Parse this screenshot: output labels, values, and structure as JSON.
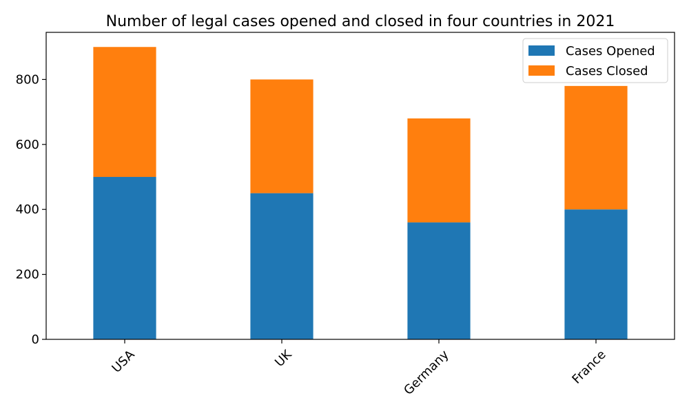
{
  "chart_data": {
    "type": "bar",
    "stacked": true,
    "title": "Number of legal cases opened and closed in four countries in 2021",
    "xlabel": "",
    "ylabel": "",
    "categories": [
      "USA",
      "UK",
      "Germany",
      "France"
    ],
    "series": [
      {
        "name": "Cases Opened",
        "values": [
          500,
          450,
          360,
          400
        ],
        "color": "#1f77b4"
      },
      {
        "name": "Cases Closed",
        "values": [
          400,
          350,
          320,
          380
        ],
        "color": "#ff7f0e"
      }
    ],
    "ylim": [
      0,
      945
    ],
    "yticks": [
      0,
      200,
      400,
      600,
      800
    ],
    "grid": false,
    "legend_position": "top-right"
  }
}
